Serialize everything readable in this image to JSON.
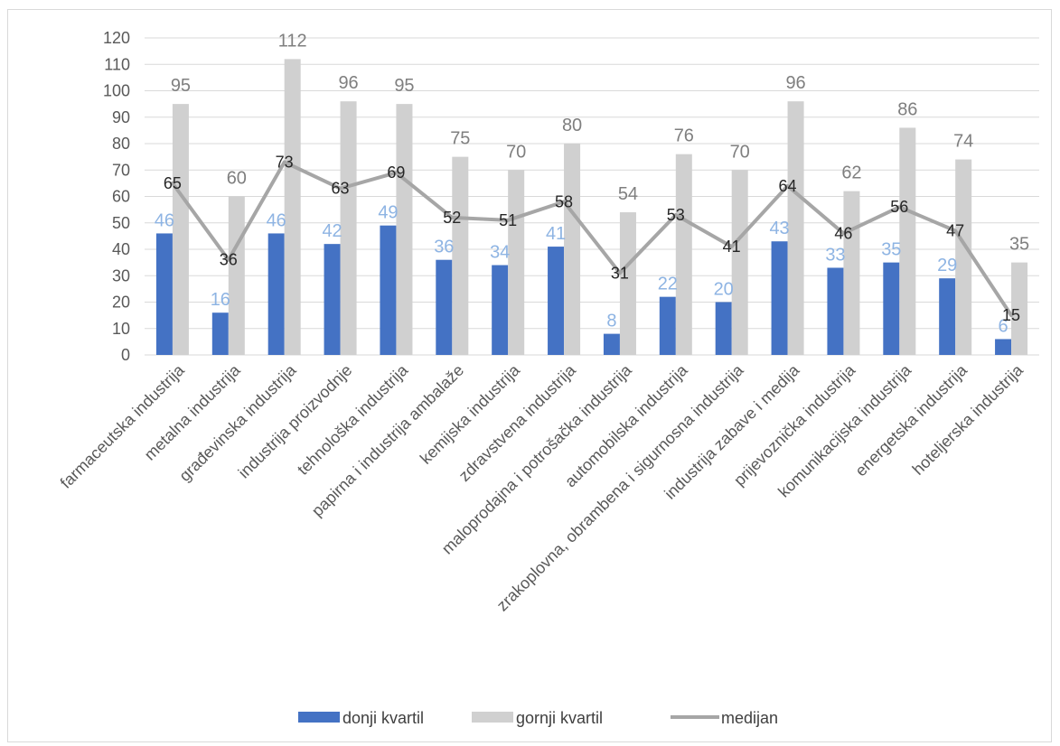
{
  "chart_data": {
    "type": "bar",
    "categories": [
      "farmaceutska industrija",
      "metalna industrija",
      "građevinska industrija",
      "industrija proizvodnje",
      "tehnološka industrija",
      "papirna i industrija ambalaže",
      "kemijska industrija",
      "zdravstvena industrija",
      "maloprodajna i potrošačka industrija",
      "automobilska industrija",
      "zrakoplovna, obrambena i sigurnosna industrija",
      "industrija zabave i medija",
      "prijevoznička industrija",
      "komunikacijska industrija",
      "energetska industrija",
      "hoteljerska industrija"
    ],
    "series": [
      {
        "name": "donji kvartil",
        "kind": "bar",
        "color": "#4472c4",
        "label_color": "#8eb4e3",
        "values": [
          46,
          16,
          46,
          42,
          49,
          36,
          34,
          41,
          8,
          22,
          20,
          43,
          33,
          35,
          29,
          6
        ]
      },
      {
        "name": "gornji kvartil",
        "kind": "bar",
        "color": "#d0d0d0",
        "label_color": "#7f7f7f",
        "values": [
          95,
          60,
          112,
          96,
          95,
          75,
          70,
          80,
          54,
          76,
          70,
          96,
          62,
          86,
          74,
          35
        ]
      },
      {
        "name": "medijan",
        "kind": "line",
        "color": "#a6a6a6",
        "label_color": "#262626",
        "values": [
          65,
          36,
          73,
          63,
          69,
          52,
          51,
          58,
          31,
          53,
          41,
          64,
          46,
          56,
          47,
          15
        ]
      }
    ],
    "y_ticks": [
      "0",
      "10",
      "20",
      "30",
      "40",
      "50",
      "60",
      "70",
      "80",
      "90",
      "100",
      "110",
      "120"
    ],
    "ylim": [
      0,
      120
    ],
    "title": "",
    "xlabel": "",
    "ylabel": "",
    "grid": true,
    "legend_position": "bottom",
    "grid_color": "#d9d9d9"
  }
}
